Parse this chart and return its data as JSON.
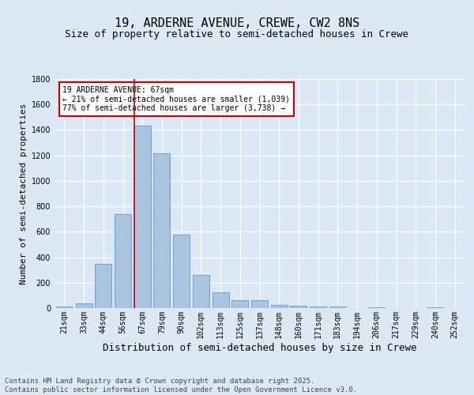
{
  "title": "19, ARDERNE AVENUE, CREWE, CW2 8NS",
  "subtitle": "Size of property relative to semi-detached houses in Crewe",
  "xlabel": "Distribution of semi-detached houses by size in Crewe",
  "ylabel": "Number of semi-detached properties",
  "categories": [
    "21sqm",
    "33sqm",
    "44sqm",
    "56sqm",
    "67sqm",
    "79sqm",
    "90sqm",
    "102sqm",
    "113sqm",
    "125sqm",
    "137sqm",
    "148sqm",
    "160sqm",
    "171sqm",
    "183sqm",
    "194sqm",
    "206sqm",
    "217sqm",
    "229sqm",
    "240sqm",
    "252sqm"
  ],
  "values": [
    10,
    35,
    345,
    740,
    1435,
    1215,
    580,
    260,
    125,
    65,
    60,
    25,
    20,
    15,
    10,
    0,
    5,
    0,
    0,
    5,
    0
  ],
  "bar_color": "#aac4e0",
  "bar_edge_color": "#5b9bd5",
  "highlight_index": 4,
  "highlight_line_color": "#cc0000",
  "annotation_text": "19 ARDERNE AVENUE: 67sqm\n← 21% of semi-detached houses are smaller (1,039)\n77% of semi-detached houses are larger (3,738) →",
  "annotation_box_color": "#ffffff",
  "annotation_box_edge": "#cc0000",
  "ylim": [
    0,
    1800
  ],
  "yticks": [
    0,
    200,
    400,
    600,
    800,
    1000,
    1200,
    1400,
    1600,
    1800
  ],
  "background_color": "#dce9f5",
  "plot_bg_color": "#dce9f5",
  "grid_color": "#ffffff",
  "footer": "Contains HM Land Registry data © Crown copyright and database right 2025.\nContains public sector information licensed under the Open Government Licence v3.0.",
  "title_fontsize": 11,
  "subtitle_fontsize": 9,
  "xlabel_fontsize": 9,
  "ylabel_fontsize": 8,
  "tick_fontsize": 7,
  "footer_fontsize": 6.5
}
